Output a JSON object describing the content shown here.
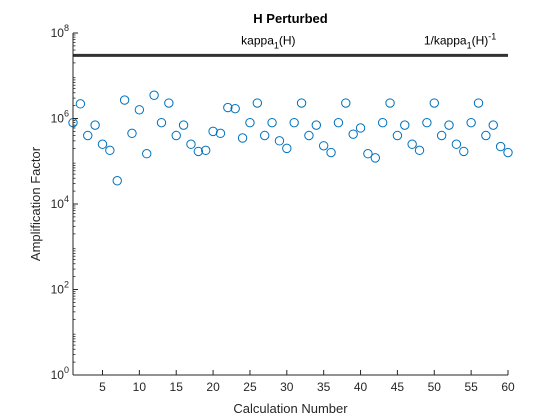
{
  "chart_data": {
    "type": "scatter",
    "title": "H Perturbed",
    "xlabel": "Calculation Number",
    "ylabel": "Amplification Factor",
    "xlim": [
      1,
      60
    ],
    "ylim": [
      1,
      100000000
    ],
    "yscale": "log",
    "grid": false,
    "x_ticks": [
      5,
      10,
      15,
      20,
      25,
      30,
      35,
      40,
      45,
      50,
      55,
      60
    ],
    "y_ticks": [
      {
        "value": 1,
        "base": "10",
        "exp": "0"
      },
      {
        "value": 100,
        "base": "10",
        "exp": "2"
      },
      {
        "value": 10000,
        "base": "10",
        "exp": "4"
      },
      {
        "value": 1000000,
        "base": "10",
        "exp": "6"
      },
      {
        "value": 100000000,
        "base": "10",
        "exp": "8"
      }
    ],
    "reference_line": {
      "y": 30000000,
      "color": "#333333"
    },
    "annotations": [
      {
        "x": 27.5,
        "y": 60000000,
        "parts": [
          {
            "t": "kappa"
          },
          {
            "t": "1",
            "sub": true
          },
          {
            "t": "(H)"
          }
        ]
      },
      {
        "x": 53.5,
        "y": 60000000,
        "parts": [
          {
            "t": "1/kappa"
          },
          {
            "t": "1",
            "sub": true
          },
          {
            "t": "(H)"
          },
          {
            "t": "-1",
            "sup": true
          }
        ]
      }
    ],
    "marker_color": "#0072BD",
    "series": [
      {
        "x": [
          1,
          2,
          3,
          4,
          5,
          6,
          7,
          8,
          9,
          10,
          11,
          12,
          13,
          14,
          15,
          16,
          17,
          18,
          19,
          20,
          21,
          22,
          23,
          24,
          25,
          26,
          27,
          28,
          29,
          30,
          31,
          32,
          33,
          34,
          35,
          36,
          37,
          38,
          39,
          40,
          41,
          42,
          43,
          44,
          45,
          46,
          47,
          48,
          49,
          50,
          51,
          52,
          53,
          54,
          55,
          56,
          57,
          58,
          59,
          60
        ],
        "values": [
          800000,
          2200000,
          400000,
          700000,
          250000,
          180000,
          35000,
          2700000,
          450000,
          1600000,
          150000,
          3500000,
          800000,
          2300000,
          400000,
          700000,
          250000,
          170000,
          180000,
          500000,
          450000,
          1800000,
          1700000,
          350000,
          800000,
          2300000,
          400000,
          800000,
          300000,
          200000,
          800000,
          2300000,
          400000,
          700000,
          230000,
          160000,
          800000,
          2300000,
          430000,
          600000,
          150000,
          120000,
          800000,
          2300000,
          400000,
          700000,
          250000,
          180000,
          800000,
          2300000,
          400000,
          700000,
          250000,
          170000,
          800000,
          2300000,
          400000,
          700000,
          220000,
          160000
        ]
      }
    ]
  }
}
